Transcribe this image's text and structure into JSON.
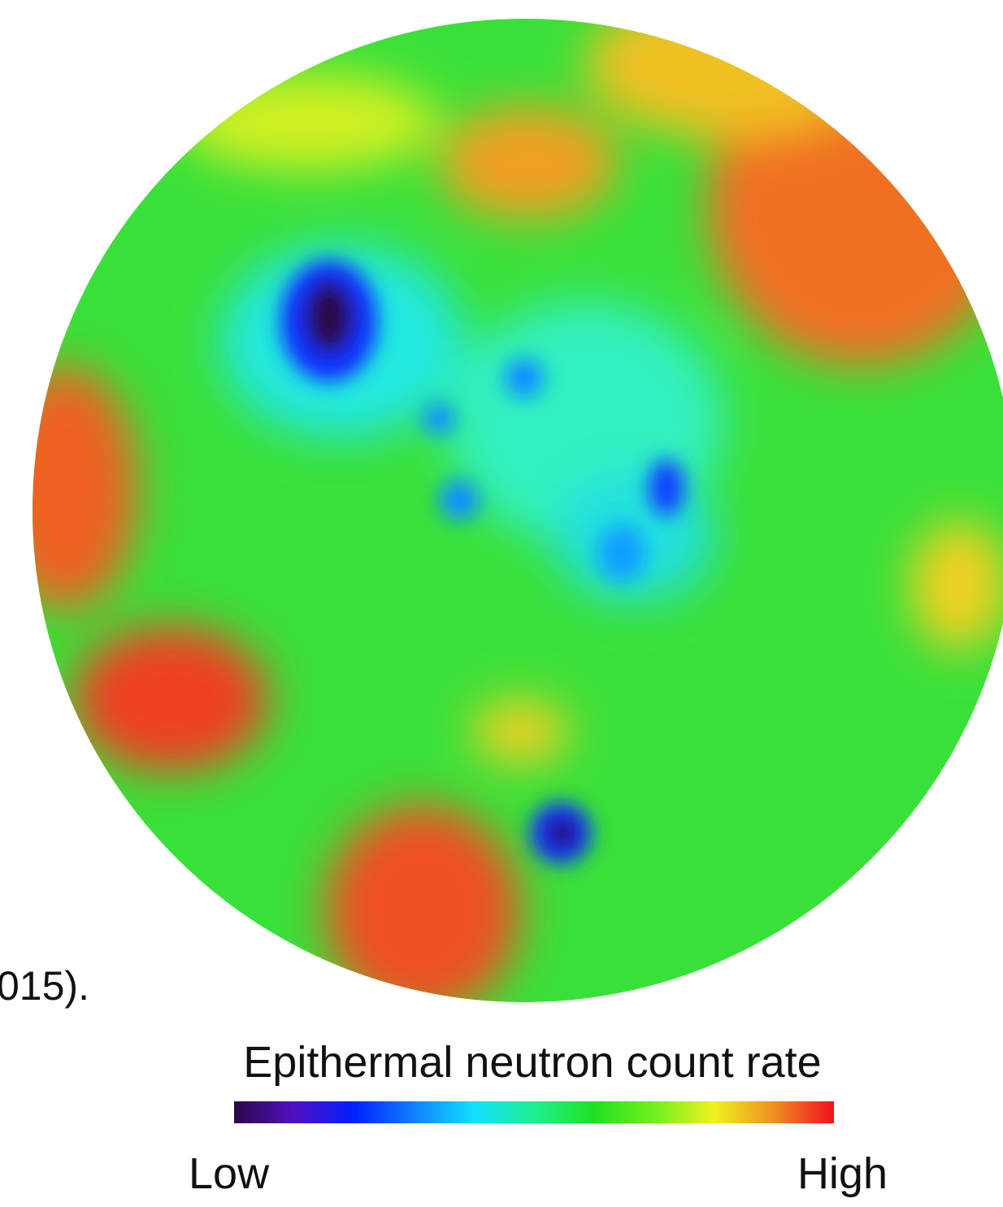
{
  "caption_fragment": "015).",
  "legend": {
    "title": "Epithermal neutron count rate",
    "low_label": "Low",
    "high_label": "High"
  }
}
